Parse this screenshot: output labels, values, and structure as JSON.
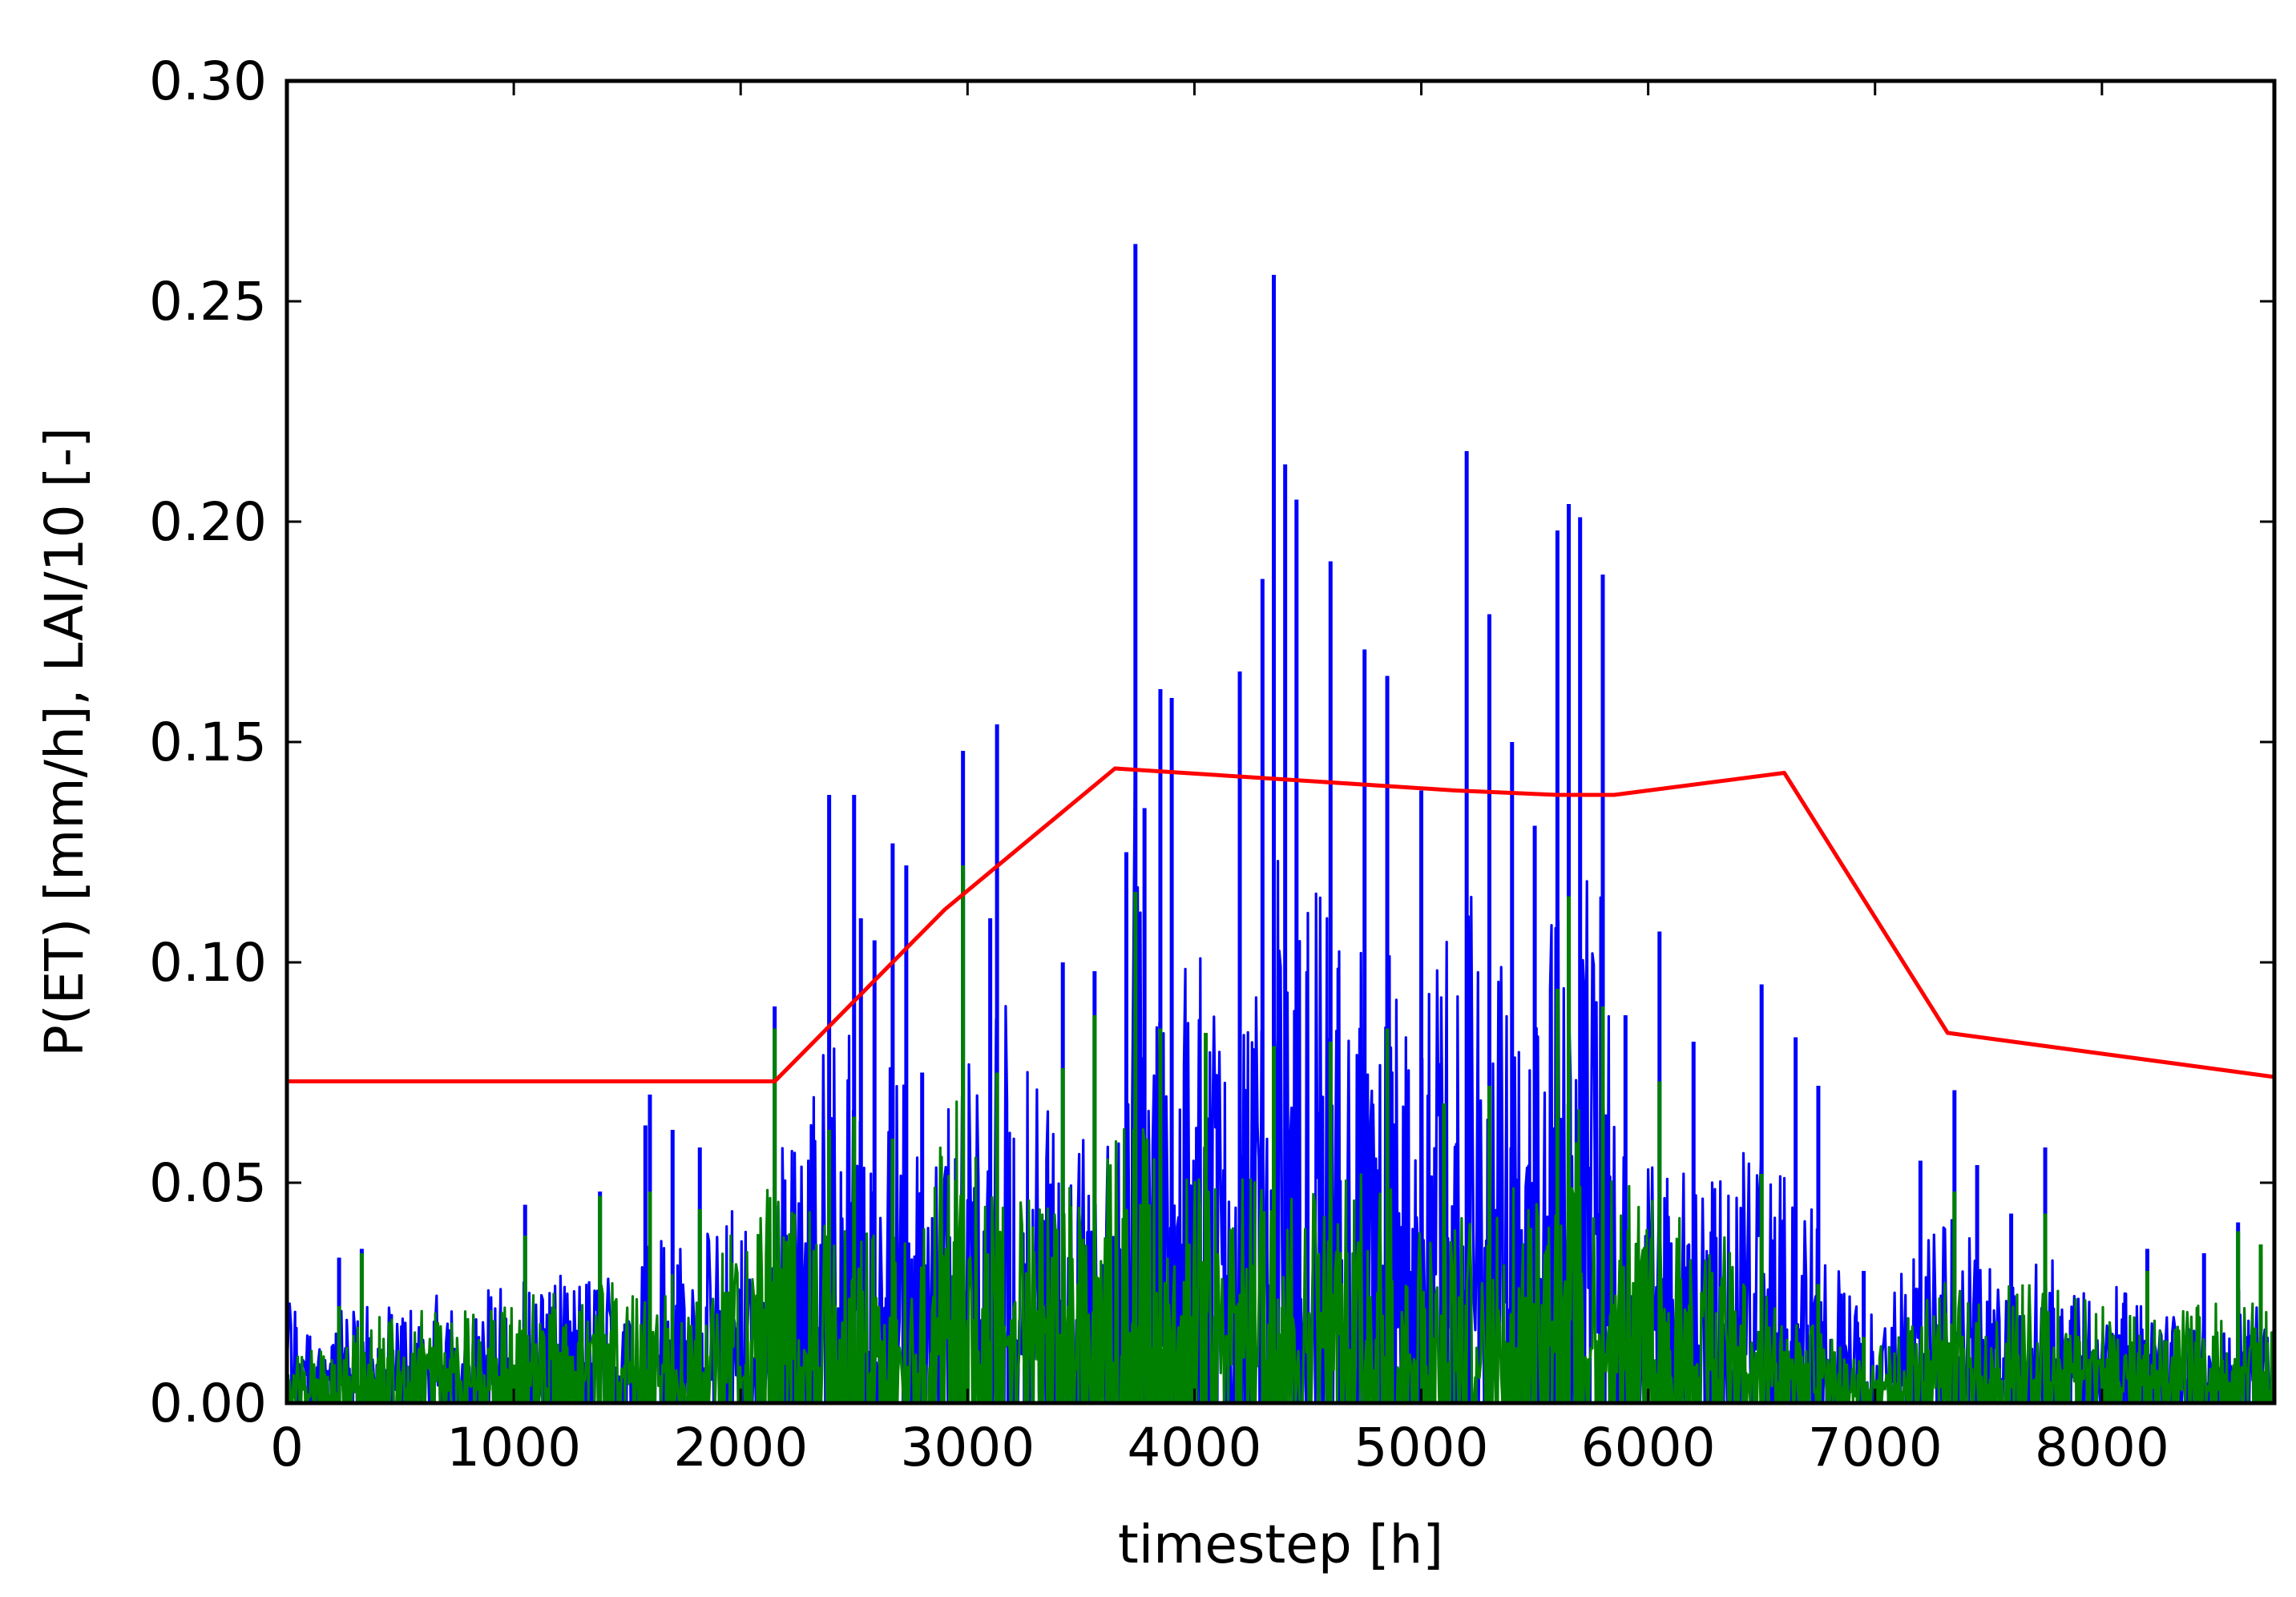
{
  "chart_data": {
    "type": "line",
    "title": "",
    "xlabel": "timestep [h]",
    "ylabel": "P(ET) [mm/h], LAI/10 [-]",
    "xlim": [
      0,
      8760
    ],
    "ylim": [
      0,
      0.3
    ],
    "xticks": [
      0,
      1000,
      2000,
      3000,
      4000,
      5000,
      6000,
      7000,
      8000
    ],
    "xtick_labels": [
      "0",
      "1000",
      "2000",
      "3000",
      "4000",
      "5000",
      "6000",
      "7000",
      "8000"
    ],
    "yticks": [
      0,
      0.05,
      0.1,
      0.15,
      0.2,
      0.25,
      0.3
    ],
    "ytick_labels": [
      "0.00",
      "0.05",
      "0.10",
      "0.15",
      "0.20",
      "0.25",
      "0.30"
    ],
    "grid": false,
    "legend": "none",
    "series": [
      {
        "color": "#0000ff",
        "kind": "dense-hourly",
        "values": [
          [
            0,
            0.043
          ],
          [
            230,
            0.033
          ],
          [
            330,
            0.035
          ],
          [
            1050,
            0.045
          ],
          [
            1380,
            0.048
          ],
          [
            1580,
            0.063
          ],
          [
            1600,
            0.07
          ],
          [
            1700,
            0.062
          ],
          [
            1820,
            0.058
          ],
          [
            2150,
            0.09
          ],
          [
            2390,
            0.138
          ],
          [
            2500,
            0.138
          ],
          [
            2530,
            0.11
          ],
          [
            2590,
            0.105
          ],
          [
            2670,
            0.127
          ],
          [
            2730,
            0.122
          ],
          [
            2800,
            0.075
          ],
          [
            2980,
            0.148
          ],
          [
            3100,
            0.11
          ],
          [
            3130,
            0.154
          ],
          [
            3420,
            0.1
          ],
          [
            3560,
            0.098
          ],
          [
            3700,
            0.125
          ],
          [
            3740,
            0.263
          ],
          [
            3780,
            0.135
          ],
          [
            3850,
            0.162
          ],
          [
            3900,
            0.16
          ],
          [
            4200,
            0.166
          ],
          [
            4300,
            0.187
          ],
          [
            4350,
            0.256
          ],
          [
            4400,
            0.213
          ],
          [
            4450,
            0.205
          ],
          [
            4600,
            0.191
          ],
          [
            4750,
            0.171
          ],
          [
            4850,
            0.165
          ],
          [
            5000,
            0.139
          ],
          [
            5200,
            0.216
          ],
          [
            5300,
            0.179
          ],
          [
            5400,
            0.15
          ],
          [
            5500,
            0.131
          ],
          [
            5600,
            0.198
          ],
          [
            5650,
            0.204
          ],
          [
            5700,
            0.201
          ],
          [
            5800,
            0.188
          ],
          [
            5900,
            0.088
          ],
          [
            6050,
            0.107
          ],
          [
            6200,
            0.082
          ],
          [
            6500,
            0.095
          ],
          [
            6650,
            0.083
          ],
          [
            6750,
            0.072
          ],
          [
            6950,
            0.03
          ],
          [
            7200,
            0.055
          ],
          [
            7350,
            0.071
          ],
          [
            7450,
            0.054
          ],
          [
            7600,
            0.043
          ],
          [
            7750,
            0.058
          ],
          [
            8200,
            0.035
          ],
          [
            8450,
            0.034
          ],
          [
            8600,
            0.041
          ],
          [
            8700,
            0.033
          ],
          [
            8760,
            0.03
          ]
        ]
      },
      {
        "color": "#008000",
        "kind": "dense-hourly",
        "values": [
          [
            0,
            0.016
          ],
          [
            230,
            0.022
          ],
          [
            330,
            0.034
          ],
          [
            1050,
            0.038
          ],
          [
            1380,
            0.047
          ],
          [
            1600,
            0.048
          ],
          [
            1820,
            0.044
          ],
          [
            2150,
            0.085
          ],
          [
            2390,
            0.062
          ],
          [
            2500,
            0.065
          ],
          [
            2670,
            0.06
          ],
          [
            2980,
            0.122
          ],
          [
            3130,
            0.075
          ],
          [
            3420,
            0.076
          ],
          [
            3560,
            0.088
          ],
          [
            3740,
            0.116
          ],
          [
            3850,
            0.085
          ],
          [
            4050,
            0.084
          ],
          [
            4350,
            0.081
          ],
          [
            4600,
            0.082
          ],
          [
            4850,
            0.085
          ],
          [
            5100,
            0.068
          ],
          [
            5300,
            0.072
          ],
          [
            5600,
            0.094
          ],
          [
            5650,
            0.115
          ],
          [
            5800,
            0.09
          ],
          [
            6050,
            0.073
          ],
          [
            6500,
            0.052
          ],
          [
            6750,
            0.027
          ],
          [
            6950,
            0.015
          ],
          [
            7350,
            0.048
          ],
          [
            7750,
            0.043
          ],
          [
            8200,
            0.03
          ],
          [
            8600,
            0.039
          ],
          [
            8700,
            0.036
          ],
          [
            8760,
            0.035
          ]
        ]
      },
      {
        "color": "#ff0000",
        "kind": "line",
        "x": [
          0,
          2150,
          2900,
          3650,
          5150,
          5600,
          5850,
          6600,
          7320,
          8760
        ],
        "y": [
          0.073,
          0.073,
          0.112,
          0.144,
          0.139,
          0.138,
          0.138,
          0.143,
          0.084,
          0.074
        ]
      }
    ]
  }
}
